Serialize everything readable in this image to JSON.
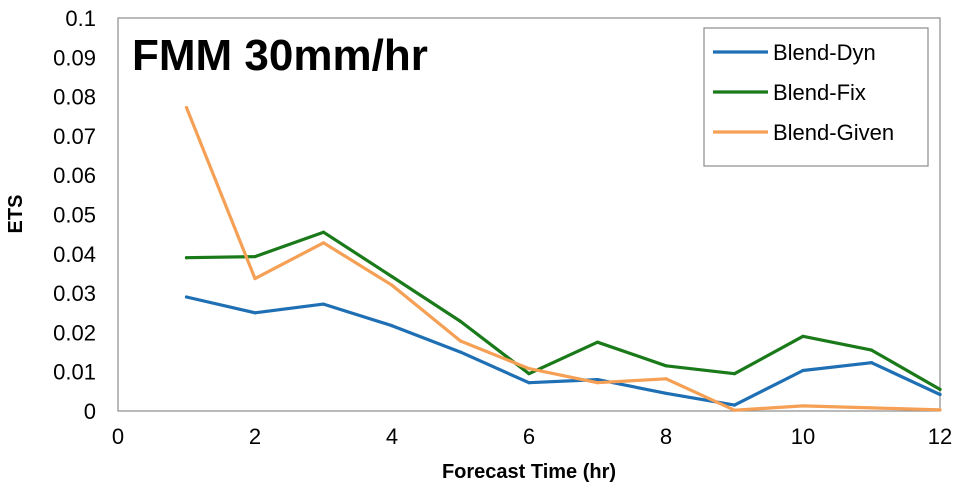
{
  "chart_data": {
    "type": "line",
    "title": "FMM 30mm/hr",
    "xlabel": "Forecast Time (hr)",
    "ylabel": "ETS",
    "xlim": [
      0,
      12
    ],
    "ylim": [
      0,
      0.1
    ],
    "xticks": [
      0,
      2,
      4,
      6,
      8,
      10,
      12
    ],
    "yticks": [
      0,
      0.01,
      0.02,
      0.03,
      0.04,
      0.05,
      0.06,
      0.07,
      0.08,
      0.09,
      0.1
    ],
    "grid": false,
    "legend_position": "top-right",
    "x": [
      1,
      2,
      3,
      4,
      5,
      6,
      7,
      8,
      9,
      10,
      11,
      12
    ],
    "series": [
      {
        "name": "Blend-Dyn",
        "color": "#1f6fb4",
        "values": [
          0.029,
          0.025,
          0.0272,
          0.0217,
          0.015,
          0.0072,
          0.008,
          0.0045,
          0.0015,
          0.0103,
          0.0123,
          0.0042
        ]
      },
      {
        "name": "Blend-Fix",
        "color": "#1a7a1a",
        "values": [
          0.039,
          0.0393,
          0.0455,
          0.0342,
          0.0228,
          0.0095,
          0.0175,
          0.0115,
          0.0095,
          0.019,
          0.0155,
          0.0055
        ]
      },
      {
        "name": "Blend-Given",
        "color": "#f5a055",
        "values": [
          0.0772,
          0.0337,
          0.0428,
          0.032,
          0.0178,
          0.0108,
          0.0072,
          0.0082,
          0.0002,
          0.0013,
          0.0008,
          0.0003
        ]
      }
    ]
  }
}
